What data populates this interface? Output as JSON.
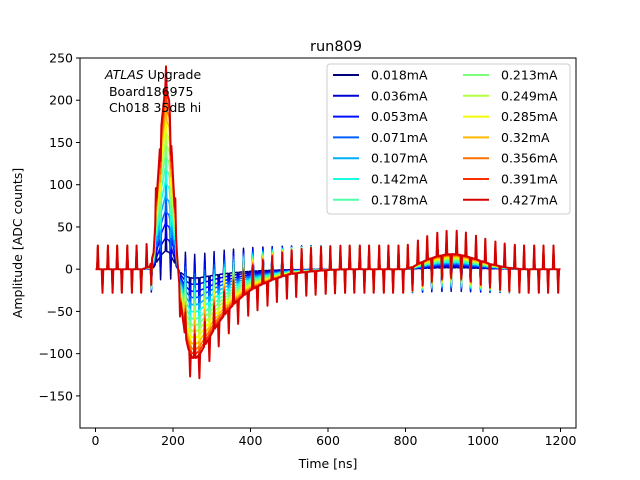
{
  "chart_data": {
    "type": "line",
    "title": "run809",
    "xlabel": "Time [ns]",
    "ylabel": "Amplitude [ADC counts]",
    "xlim": [
      -40,
      1240
    ],
    "ylim": [
      -188,
      250
    ],
    "xticks": [
      0,
      200,
      400,
      600,
      800,
      1000,
      1200
    ],
    "xtick_labels": [
      "0",
      "200",
      "400",
      "600",
      "800",
      "1000",
      "1200"
    ],
    "yticks": [
      -150,
      -100,
      -50,
      0,
      50,
      100,
      150,
      200,
      250
    ],
    "ytick_labels": [
      "−150",
      "−100",
      "−50",
      "0",
      "50",
      "100",
      "150",
      "200",
      "250"
    ],
    "grid": false,
    "legend_position": "top-right",
    "legend_columns": 2,
    "annotation": {
      "italic": "ATLAS",
      "rest": " Upgrade",
      "line2": " Board186975",
      "line3": " Ch018 35dB hi"
    },
    "x": [
      0,
      20,
      40,
      60,
      80,
      100,
      120,
      140,
      150,
      160,
      170,
      180,
      190,
      200,
      210,
      220,
      230,
      240,
      250,
      260,
      270,
      280,
      290,
      300,
      320,
      340,
      360,
      380,
      400,
      420,
      440,
      460,
      480,
      500,
      550,
      600,
      650,
      700,
      750,
      800,
      820,
      840,
      860,
      880,
      900,
      920,
      940,
      960,
      980,
      1000,
      1020,
      1040,
      1060,
      1080,
      1100,
      1150,
      1200
    ],
    "series": [
      {
        "name": "0.018mA",
        "color": "#00007f",
        "scale": 0.1
      },
      {
        "name": "0.036mA",
        "color": "#0000d5",
        "scale": 0.17
      },
      {
        "name": "0.053mA",
        "color": "#0010ff",
        "scale": 0.25
      },
      {
        "name": "0.071mA",
        "color": "#0060ff",
        "scale": 0.32
      },
      {
        "name": "0.107mA",
        "color": "#00b0ff",
        "scale": 0.4
      },
      {
        "name": "0.142mA",
        "color": "#17ffe0",
        "scale": 0.48
      },
      {
        "name": "0.178mA",
        "color": "#4dffaa",
        "scale": 0.56
      },
      {
        "name": "0.213mA",
        "color": "#7dff7a",
        "scale": 0.63
      },
      {
        "name": "0.249mA",
        "color": "#b4ff43",
        "scale": 0.7
      },
      {
        "name": "0.285mA",
        "color": "#f1fc06",
        "scale": 0.77
      },
      {
        "name": "0.32mA",
        "color": "#ffb900",
        "scale": 0.84
      },
      {
        "name": "0.356mA",
        "color": "#ff7300",
        "scale": 0.9
      },
      {
        "name": "0.391mA",
        "color": "#ff3000",
        "scale": 0.95
      },
      {
        "name": "0.427mA",
        "color": "#d50000",
        "scale": 1.0
      }
    ],
    "base_waveform": [
      0,
      0,
      0,
      0,
      0,
      0,
      0,
      3,
      20,
      100,
      170,
      215,
      200,
      110,
      20,
      -40,
      -75,
      -95,
      -105,
      -105,
      -100,
      -92,
      -84,
      -76,
      -62,
      -50,
      -40,
      -32,
      -25,
      -20,
      -16,
      -12,
      -9,
      -6,
      -3,
      -1,
      0,
      0,
      0,
      0,
      3,
      8,
      12,
      15,
      17,
      18,
      17,
      15,
      12,
      9,
      6,
      4,
      2,
      1,
      0,
      0,
      0
    ]
  }
}
